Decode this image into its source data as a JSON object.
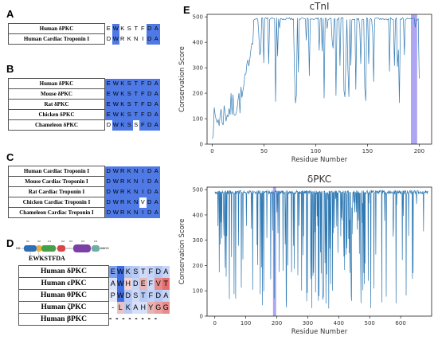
{
  "panels": {
    "A": {
      "letter": "A",
      "rows": [
        {
          "name": "Human δPKC",
          "seq": "EWKSTFDA"
        },
        {
          "name": "Human Cardiac Troponin I",
          "seq": "DWRKNIDA"
        }
      ]
    },
    "B": {
      "letter": "B",
      "rows": [
        {
          "name": "Human δPKC",
          "seq": "EWKSTFDA"
        },
        {
          "name": "Mouse δPKC",
          "seq": "EWKSTFDA"
        },
        {
          "name": "Rat δPKC",
          "seq": "EWKSTFDA"
        },
        {
          "name": "Chicken δPKC",
          "seq": "EWKSTFDA"
        },
        {
          "name": "Chameleon δPKC",
          "seq": "DWKSSFDA"
        }
      ]
    },
    "C": {
      "letter": "C",
      "rows": [
        {
          "name": "Human Cardiac Troponin I",
          "seq": "DWRKNIDA"
        },
        {
          "name": "Mouse Cardiac Troponin I",
          "seq": "DWRKNIDA"
        },
        {
          "name": "Rat Cardiac Troponin I",
          "seq": "DWRKNIDA"
        },
        {
          "name": "Chicken Cardiac Troponin I",
          "seq": "DWRKNVDA"
        },
        {
          "name": "Chameleon Cardiac Troponin I",
          "seq": "DWRKNIDA"
        }
      ]
    },
    "D": {
      "letter": "D",
      "motif": "EWKSTFDA",
      "domain_labels": {
        "nh2": "NH₂",
        "cooh": "COOH",
        "v1": "V1",
        "c1": "C1",
        "v2": "V2",
        "c2": "C2",
        "v3": "V3",
        "c3": "C3",
        "c4": "C4"
      },
      "rows": [
        {
          "name": "Human δPKC",
          "seq": "EWKSTFDA"
        },
        {
          "name": "Human εPKC",
          "seq": "AWHDEFVT"
        },
        {
          "name": "Human θPKC",
          "seq": "PWDSTFDA"
        },
        {
          "name": "Human ζPKC",
          "seq": "-LKAHYGG"
        },
        {
          "name": "Human βPKC",
          "seq": "",
          "dashes": "- - - - - - - -"
        }
      ],
      "colors": [
        [
          "#7da0f0",
          "#3f6fe3",
          "#aec4f2",
          "#b9cbf5",
          "#d0dbf8",
          "#c4d3f6",
          "#b3c6f4",
          "#c7d5f7"
        ],
        [
          "#d7e1fa",
          "#3f6fe3",
          "#f3d3d3",
          "#c6d4f6",
          "#e7b7b7",
          "#cbd8f7",
          "#e48c8c",
          "#e36e6e"
        ],
        [
          "#e3eafb",
          "#3f6fe3",
          "#b6c8f5",
          "#d0dbf8",
          "#b7c9f5",
          "#c2d1f6",
          "#b5c8f5",
          "#c7d5f7"
        ],
        [
          "#ffffff",
          "#e9c3c3",
          "#b9cbf5",
          "#d6e0f9",
          "#d6e0f9",
          "#e6b3b3",
          "#e8a0a0",
          "#e48c8c"
        ]
      ]
    },
    "E": {
      "letter": "E"
    }
  },
  "colors": {
    "seq_blue": "#4f7ae6",
    "seq_light": "#c9d6f7",
    "seq_white": "#ffffff",
    "line": "#2f79b3",
    "highlight": "#9a8ef0"
  },
  "chart_data": [
    {
      "type": "line",
      "title": "cTnI",
      "xlabel": "Residue Number",
      "ylabel": "Conservation Score",
      "xlim": [
        -5,
        212
      ],
      "ylim": [
        0,
        510
      ],
      "xticks": [
        0,
        50,
        100,
        150,
        200
      ],
      "yticks": [
        0,
        100,
        200,
        300,
        400,
        500
      ],
      "highlight_x": [
        192,
        198
      ],
      "n_points": 210
    },
    {
      "type": "line",
      "title": "δPKC",
      "xlabel": "Residue Number",
      "ylabel": "Conservation Score",
      "xlim": [
        -25,
        700
      ],
      "ylim": [
        0,
        510
      ],
      "xticks": [
        0,
        100,
        200,
        300,
        400,
        500,
        600
      ],
      "yticks": [
        0,
        100,
        200,
        300,
        400,
        500
      ],
      "highlight_x": [
        188,
        198
      ],
      "n_points": 676
    }
  ]
}
